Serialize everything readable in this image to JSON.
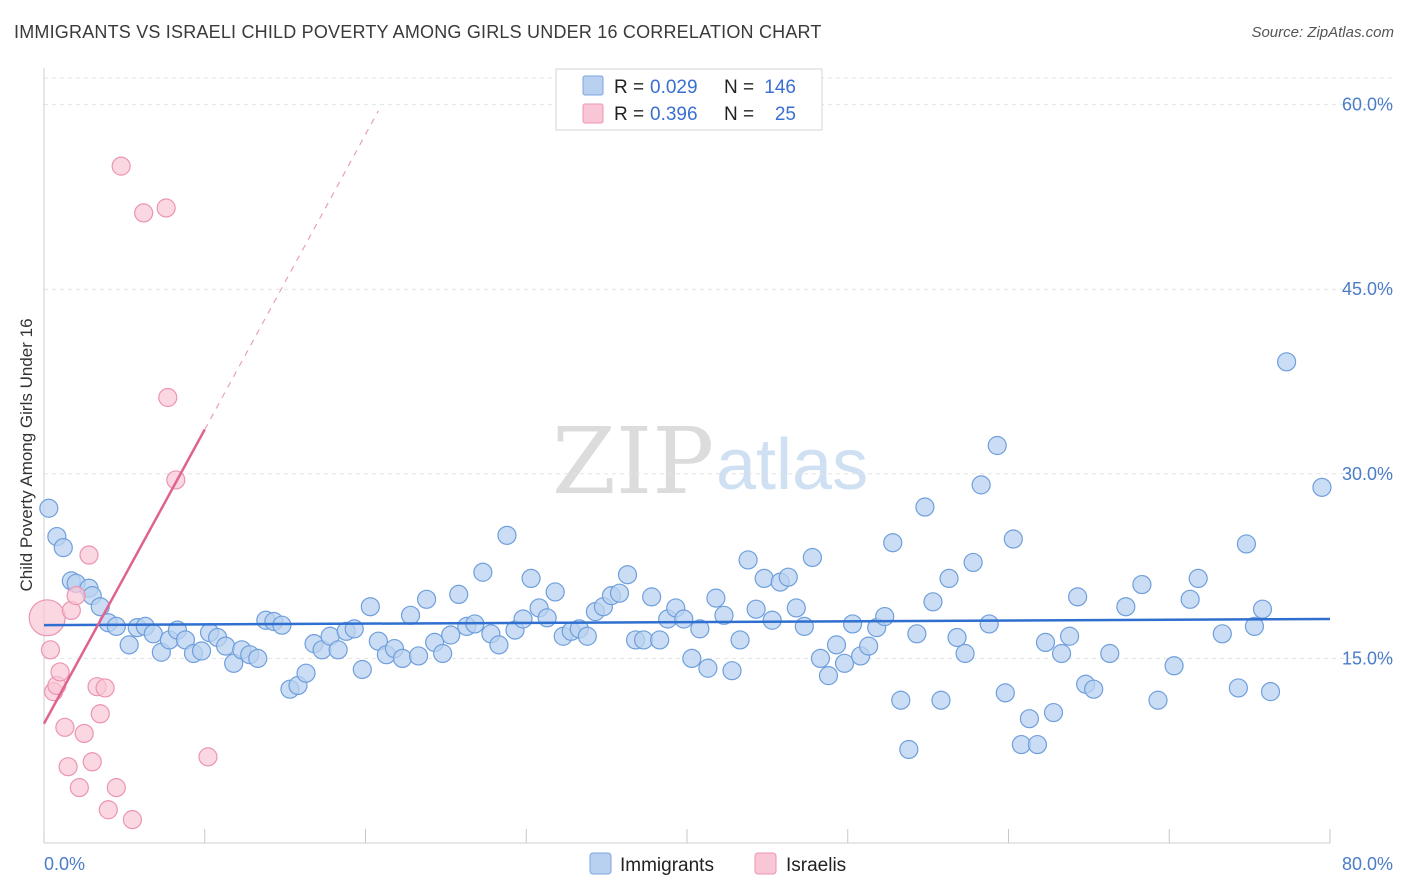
{
  "header": {
    "title": "IMMIGRANTS VS ISRAELI CHILD POVERTY AMONG GIRLS UNDER 16 CORRELATION CHART",
    "source": "Source: ZipAtlas.com"
  },
  "watermark": {
    "part1": "ZIP",
    "part2": "atlas"
  },
  "legend": {
    "rows": [
      {
        "r_label": "R =",
        "r_value": "0.029",
        "n_label": "N =",
        "n_value": "146"
      },
      {
        "r_label": "R =",
        "r_value": "0.396",
        "n_label": "N =",
        "n_value": "25"
      }
    ]
  },
  "bottom_legend": {
    "immigrants": "Immigrants",
    "israelis": "Israelis"
  },
  "chart_data": {
    "type": "scatter",
    "ylabel": "Child Poverty Among Girls Under 16",
    "xlim": [
      0,
      80
    ],
    "ylim": [
      0,
      62
    ],
    "x_tick_labels": [
      "0.0%",
      "80.0%"
    ],
    "y_tick_labels": [
      "15.0%",
      "30.0%",
      "45.0%",
      "60.0%"
    ],
    "y_ticks": [
      15,
      30,
      45,
      60
    ],
    "grid": "horizontal dashed",
    "legend_position": "top-center",
    "colors": {
      "immigrants": "#5b93d9",
      "israelis": "#e5789f"
    },
    "series": [
      {
        "name": "Immigrants",
        "trend": {
          "x": [
            0,
            80
          ],
          "y": [
            17.7,
            18.2
          ]
        },
        "points": [
          [
            0.3,
            27.2
          ],
          [
            0.8,
            24.9
          ],
          [
            1.2,
            24.0
          ],
          [
            1.7,
            21.3
          ],
          [
            2.0,
            21.1
          ],
          [
            2.8,
            20.7
          ],
          [
            3.0,
            20.1
          ],
          [
            3.5,
            19.2
          ],
          [
            4.0,
            17.9
          ],
          [
            4.5,
            17.6
          ],
          [
            5.3,
            16.1
          ],
          [
            5.8,
            17.5
          ],
          [
            6.3,
            17.6
          ],
          [
            6.8,
            17.0
          ],
          [
            7.3,
            15.5
          ],
          [
            7.8,
            16.5
          ],
          [
            8.3,
            17.3
          ],
          [
            8.8,
            16.5
          ],
          [
            9.3,
            15.4
          ],
          [
            9.8,
            15.6
          ],
          [
            10.3,
            17.1
          ],
          [
            10.8,
            16.7
          ],
          [
            11.3,
            16.0
          ],
          [
            11.8,
            14.6
          ],
          [
            12.3,
            15.7
          ],
          [
            12.8,
            15.3
          ],
          [
            13.3,
            15.0
          ],
          [
            13.8,
            18.1
          ],
          [
            14.3,
            18.0
          ],
          [
            14.8,
            17.7
          ],
          [
            15.3,
            12.5
          ],
          [
            15.8,
            12.8
          ],
          [
            16.3,
            13.8
          ],
          [
            16.8,
            16.2
          ],
          [
            17.3,
            15.7
          ],
          [
            17.8,
            16.8
          ],
          [
            18.3,
            15.7
          ],
          [
            18.8,
            17.2
          ],
          [
            19.3,
            17.4
          ],
          [
            19.8,
            14.1
          ],
          [
            20.3,
            19.2
          ],
          [
            20.8,
            16.4
          ],
          [
            21.3,
            15.3
          ],
          [
            21.8,
            15.8
          ],
          [
            22.3,
            15.0
          ],
          [
            22.8,
            18.5
          ],
          [
            23.3,
            15.2
          ],
          [
            23.8,
            19.8
          ],
          [
            24.3,
            16.3
          ],
          [
            24.8,
            15.4
          ],
          [
            25.3,
            16.9
          ],
          [
            25.8,
            20.2
          ],
          [
            26.3,
            17.6
          ],
          [
            26.8,
            17.8
          ],
          [
            27.3,
            22.0
          ],
          [
            27.8,
            17.0
          ],
          [
            28.3,
            16.1
          ],
          [
            28.8,
            25.0
          ],
          [
            29.3,
            17.3
          ],
          [
            29.8,
            18.2
          ],
          [
            30.3,
            21.5
          ],
          [
            30.8,
            19.1
          ],
          [
            31.3,
            18.3
          ],
          [
            31.8,
            20.4
          ],
          [
            32.3,
            16.8
          ],
          [
            32.8,
            17.2
          ],
          [
            33.3,
            17.4
          ],
          [
            33.8,
            16.8
          ],
          [
            34.3,
            18.8
          ],
          [
            34.8,
            19.2
          ],
          [
            35.3,
            20.1
          ],
          [
            35.8,
            20.3
          ],
          [
            36.3,
            21.8
          ],
          [
            36.8,
            16.5
          ],
          [
            37.3,
            16.5
          ],
          [
            37.8,
            20.0
          ],
          [
            38.3,
            16.5
          ],
          [
            38.8,
            18.2
          ],
          [
            39.3,
            19.1
          ],
          [
            39.8,
            18.2
          ],
          [
            40.3,
            15.0
          ],
          [
            40.8,
            17.4
          ],
          [
            41.3,
            14.2
          ],
          [
            41.8,
            19.9
          ],
          [
            42.3,
            18.5
          ],
          [
            42.8,
            14.0
          ],
          [
            43.3,
            16.5
          ],
          [
            43.8,
            23.0
          ],
          [
            44.3,
            19.0
          ],
          [
            44.8,
            21.5
          ],
          [
            45.3,
            18.1
          ],
          [
            45.8,
            21.2
          ],
          [
            46.3,
            21.6
          ],
          [
            46.8,
            19.1
          ],
          [
            47.3,
            17.6
          ],
          [
            47.8,
            23.2
          ],
          [
            48.3,
            15.0
          ],
          [
            48.8,
            13.6
          ],
          [
            49.3,
            16.1
          ],
          [
            49.8,
            14.6
          ],
          [
            50.3,
            17.8
          ],
          [
            50.8,
            15.2
          ],
          [
            51.3,
            16.0
          ],
          [
            51.8,
            17.5
          ],
          [
            52.3,
            18.4
          ],
          [
            52.8,
            24.4
          ],
          [
            53.3,
            11.6
          ],
          [
            53.8,
            7.6
          ],
          [
            54.3,
            17.0
          ],
          [
            54.8,
            27.3
          ],
          [
            55.3,
            19.6
          ],
          [
            55.8,
            11.6
          ],
          [
            56.3,
            21.5
          ],
          [
            56.8,
            16.7
          ],
          [
            57.3,
            15.4
          ],
          [
            57.8,
            22.8
          ],
          [
            58.3,
            29.1
          ],
          [
            58.8,
            17.8
          ],
          [
            59.3,
            32.3
          ],
          [
            59.8,
            12.2
          ],
          [
            60.3,
            24.7
          ],
          [
            60.8,
            8.0
          ],
          [
            61.3,
            10.1
          ],
          [
            61.8,
            8.0
          ],
          [
            62.3,
            16.3
          ],
          [
            62.8,
            10.6
          ],
          [
            63.3,
            15.4
          ],
          [
            63.8,
            16.8
          ],
          [
            64.3,
            20.0
          ],
          [
            64.8,
            12.9
          ],
          [
            65.3,
            12.5
          ],
          [
            66.3,
            15.4
          ],
          [
            67.3,
            19.2
          ],
          [
            68.3,
            21.0
          ],
          [
            69.3,
            11.6
          ],
          [
            70.3,
            14.4
          ],
          [
            71.3,
            19.8
          ],
          [
            71.8,
            21.5
          ],
          [
            73.3,
            17.0
          ],
          [
            74.3,
            12.6
          ],
          [
            74.8,
            24.3
          ],
          [
            75.3,
            17.6
          ],
          [
            75.8,
            19.0
          ],
          [
            76.3,
            12.3
          ],
          [
            77.3,
            39.1
          ],
          [
            79.5,
            28.9
          ]
        ]
      },
      {
        "name": "Israelis",
        "trend": {
          "x": [
            0,
            10
          ],
          "y": [
            9.7,
            33.6
          ],
          "dashed_to": {
            "x": 20.8,
            "y": 59.5
          }
        },
        "points": [
          [
            0.2,
            18.3
          ],
          [
            0.4,
            15.7
          ],
          [
            0.6,
            12.3
          ],
          [
            0.8,
            12.8
          ],
          [
            1.0,
            13.9
          ],
          [
            1.3,
            9.4
          ],
          [
            1.5,
            6.2
          ],
          [
            1.7,
            18.9
          ],
          [
            2.0,
            20.1
          ],
          [
            2.2,
            4.5
          ],
          [
            2.5,
            8.9
          ],
          [
            2.8,
            23.4
          ],
          [
            3.0,
            6.6
          ],
          [
            3.3,
            12.7
          ],
          [
            3.5,
            10.5
          ],
          [
            3.8,
            12.6
          ],
          [
            4.0,
            2.7
          ],
          [
            4.5,
            4.5
          ],
          [
            4.8,
            55.0
          ],
          [
            5.5,
            1.9
          ],
          [
            6.2,
            51.2
          ],
          [
            7.6,
            51.6
          ],
          [
            7.7,
            36.2
          ],
          [
            8.2,
            29.5
          ],
          [
            10.2,
            7.0
          ]
        ]
      }
    ]
  }
}
